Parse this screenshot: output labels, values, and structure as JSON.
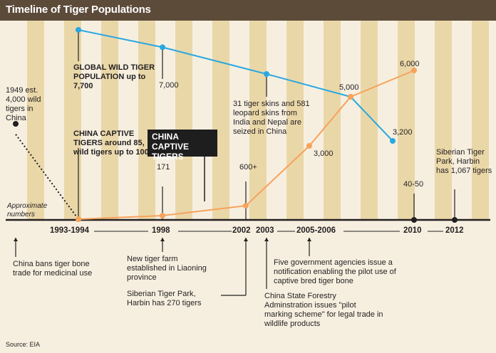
{
  "title": "Timeline of Tiger Populations",
  "source": "Source: EIA",
  "approx_label": "Approximate numbers",
  "callout_label": "CHINA CAPTIVE TIGERS",
  "colors": {
    "wild": "#29a8e0",
    "captive": "#f7a35c",
    "header": "#5d4b3a",
    "stripe": "#ead7a8",
    "background": "#f6efe0"
  },
  "chart_data": {
    "type": "line",
    "series": [
      {
        "name": "GLOBAL WILD TIGER POPULATION",
        "x": [
          1993.5,
          1998,
          2003,
          2007,
          2009
        ],
        "values": [
          7700,
          7000,
          null,
          5000,
          3200
        ]
      },
      {
        "name": "CHINA CAPTIVE TIGERS",
        "x": [
          1993.5,
          1998,
          2002,
          2005.5,
          2007,
          2010
        ],
        "values": [
          85,
          171,
          600,
          3000,
          5000,
          6000
        ]
      },
      {
        "name": "wild tigers in China",
        "x": [
          1949,
          1993.5,
          2010,
          2012
        ],
        "values": [
          4000,
          100,
          45,
          0
        ]
      }
    ],
    "data_labels": {
      "wild_start": "GLOBAL WILD TIGER POPULATION up to 7,700",
      "wild_1998": "7,000",
      "wild_2003": "31 tiger skins and 581 leopard skins from India and Nepal are seized in China",
      "meet_2007": "5,000",
      "wild_end": "3,200",
      "captive_start": "CHINA CAPTIVE TIGERS around 85, wild tigers up to 100",
      "captive_1998": "171",
      "captive_2002": "600+",
      "captive_2005": "3,000",
      "captive_2010": "6,000",
      "wild_china_1949": "1949 est. 4,000 wild tigers in China",
      "wild_china_2010": "40-50",
      "park_2012": "Siberian Tiger Park, Harbin has 1,067 tigers"
    },
    "years": [
      "1993-1994",
      "1998",
      "2002",
      "2003",
      "2005-2006",
      "2010",
      "2012"
    ],
    "events": [
      "China bans tiger bone trade for medicinal use",
      "New tiger farm established in Liaoning province",
      "Siberian Tiger Park, Harbin has 270 tigers",
      "China State Forestry Adminstration issues \"pilot marking scheme\" for legal trade in wildlife products",
      "Five government agencies issue a notification enabling the pilot use of captive bred tiger bone"
    ]
  }
}
